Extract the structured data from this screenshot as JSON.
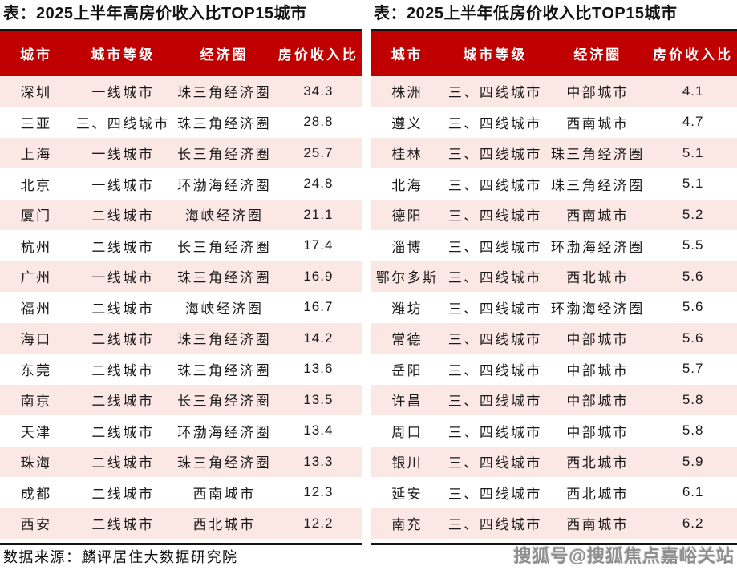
{
  "colors": {
    "header_bg": "#c00000",
    "header_text": "#ffffff",
    "row_alt_bg": "#fbe7e3",
    "table_border": "#141414",
    "watermark_gray": "#8f8f8f"
  },
  "chart_data": [
    {
      "type": "table",
      "title": "表：2025上半年高房价收入比TOP15城市",
      "columns": [
        "城市",
        "城市等级",
        "经济圈",
        "房价收入比"
      ],
      "rows": [
        [
          "深圳",
          "一线城市",
          "珠三角经济圈",
          "34.3"
        ],
        [
          "三亚",
          "三、四线城市",
          "珠三角经济圈",
          "28.8"
        ],
        [
          "上海",
          "一线城市",
          "长三角经济圈",
          "25.7"
        ],
        [
          "北京",
          "一线城市",
          "环渤海经济圈",
          "24.8"
        ],
        [
          "厦门",
          "二线城市",
          "海峡经济圈",
          "21.1"
        ],
        [
          "杭州",
          "二线城市",
          "长三角经济圈",
          "17.4"
        ],
        [
          "广州",
          "一线城市",
          "珠三角经济圈",
          "16.9"
        ],
        [
          "福州",
          "二线城市",
          "海峡经济圈",
          "16.7"
        ],
        [
          "海口",
          "二线城市",
          "珠三角经济圈",
          "14.2"
        ],
        [
          "东莞",
          "二线城市",
          "珠三角经济圈",
          "13.6"
        ],
        [
          "南京",
          "二线城市",
          "长三角经济圈",
          "13.5"
        ],
        [
          "天津",
          "二线城市",
          "环渤海经济圈",
          "13.4"
        ],
        [
          "珠海",
          "二线城市",
          "珠三角经济圈",
          "13.3"
        ],
        [
          "成都",
          "二线城市",
          "西南城市",
          "12.3"
        ],
        [
          "西安",
          "二线城市",
          "西北城市",
          "12.2"
        ]
      ]
    },
    {
      "type": "table",
      "title": "表：2025上半年低房价收入比TOP15城市",
      "columns": [
        "城市",
        "城市等级",
        "经济圈",
        "房价收入比"
      ],
      "rows": [
        [
          "株洲",
          "三、四线城市",
          "中部城市",
          "4.1"
        ],
        [
          "遵义",
          "三、四线城市",
          "西南城市",
          "4.7"
        ],
        [
          "桂林",
          "三、四线城市",
          "珠三角经济圈",
          "5.1"
        ],
        [
          "北海",
          "三、四线城市",
          "珠三角经济圈",
          "5.1"
        ],
        [
          "德阳",
          "三、四线城市",
          "西南城市",
          "5.2"
        ],
        [
          "淄博",
          "三、四线城市",
          "环渤海经济圈",
          "5.5"
        ],
        [
          "鄂尔多斯",
          "三、四线城市",
          "西北城市",
          "5.6"
        ],
        [
          "潍坊",
          "三、四线城市",
          "环渤海经济圈",
          "5.6"
        ],
        [
          "常德",
          "三、四线城市",
          "中部城市",
          "5.6"
        ],
        [
          "岳阳",
          "三、四线城市",
          "中部城市",
          "5.7"
        ],
        [
          "许昌",
          "三、四线城市",
          "中部城市",
          "5.8"
        ],
        [
          "周口",
          "三、四线城市",
          "中部城市",
          "5.8"
        ],
        [
          "银川",
          "三、四线城市",
          "西北城市",
          "5.9"
        ],
        [
          "延安",
          "三、四线城市",
          "西北城市",
          "6.1"
        ],
        [
          "南充",
          "三、四线城市",
          "西南城市",
          "6.2"
        ]
      ]
    }
  ],
  "footer": {
    "source": "数据来源：麟评居住大数据研究院",
    "watermark": "搜狐号@搜狐焦点嘉峪关站"
  }
}
